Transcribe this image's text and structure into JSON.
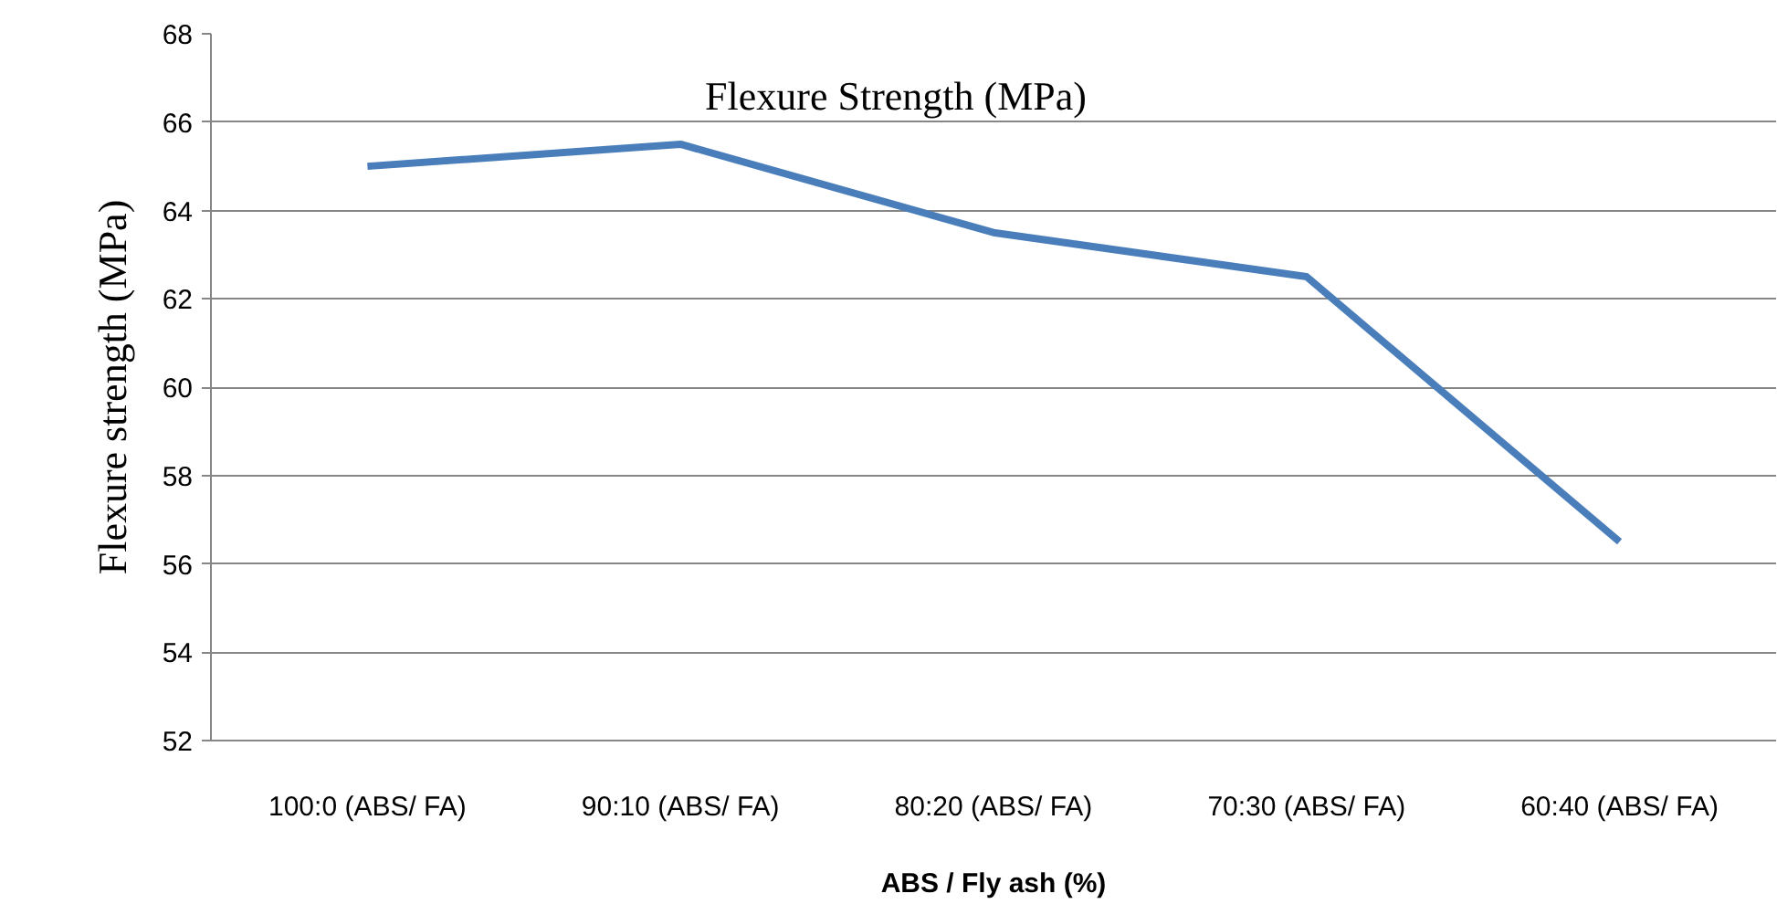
{
  "chart_data": {
    "type": "line",
    "title": "Flexure Strength (MPa)",
    "xlabel": "ABS / Fly ash (%)",
    "ylabel": "Flexure strength (MPa)",
    "categories": [
      "100:0 (ABS/ FA)",
      "90:10 (ABS/ FA)",
      "80:20 (ABS/ FA)",
      "70:30 (ABS/ FA)",
      "60:40 (ABS/ FA)"
    ],
    "series": [
      {
        "color": "#4a7ebb",
        "values": [
          65,
          65.5,
          63.5,
          62.5,
          56.5
        ]
      }
    ],
    "ylim": [
      52,
      68
    ],
    "yticks": [
      52,
      54,
      56,
      58,
      60,
      62,
      64,
      66,
      68
    ],
    "grid": "y",
    "marker": "none",
    "line_style": "solid"
  }
}
